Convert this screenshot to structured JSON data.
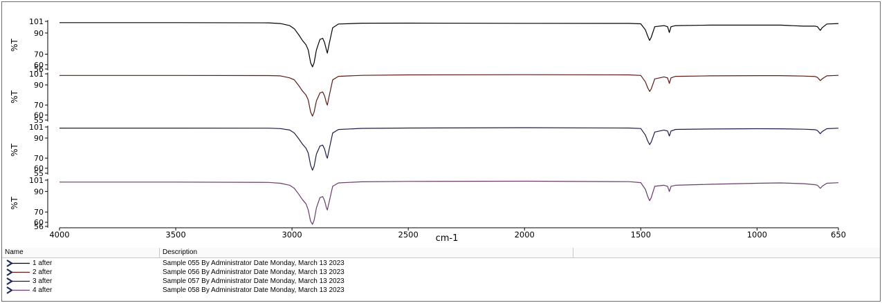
{
  "chart_data": {
    "type": "line",
    "xlabel": "cm-1",
    "ylabel": "%T",
    "xlim": [
      4000,
      650
    ],
    "x_reversed": true,
    "x_ticks": [
      4000,
      3500,
      3000,
      2500,
      2000,
      1500,
      1000,
      650
    ],
    "panels": [
      {
        "name": "1 after",
        "color": "#000000",
        "ylim": [
          56,
          101
        ],
        "y_ticks": [
          101,
          90,
          70,
          60,
          56
        ],
        "points": [
          [
            4000,
            99.8
          ],
          [
            3500,
            99.8
          ],
          [
            3100,
            99.6
          ],
          [
            3050,
            99
          ],
          [
            3010,
            97
          ],
          [
            2990,
            94
          ],
          [
            2970,
            88
          ],
          [
            2955,
            83
          ],
          [
            2940,
            79
          ],
          [
            2930,
            74
          ],
          [
            2920,
            62
          ],
          [
            2912,
            58
          ],
          [
            2905,
            62
          ],
          [
            2895,
            74
          ],
          [
            2880,
            84
          ],
          [
            2868,
            85
          ],
          [
            2860,
            81
          ],
          [
            2852,
            74
          ],
          [
            2848,
            71
          ],
          [
            2840,
            80
          ],
          [
            2825,
            95
          ],
          [
            2800,
            98.5
          ],
          [
            2700,
            99.3
          ],
          [
            2500,
            99.4
          ],
          [
            2000,
            99.2
          ],
          [
            1550,
            99.1
          ],
          [
            1500,
            98.7
          ],
          [
            1480,
            93
          ],
          [
            1470,
            87
          ],
          [
            1462,
            83
          ],
          [
            1455,
            86
          ],
          [
            1440,
            96
          ],
          [
            1400,
            97
          ],
          [
            1385,
            96
          ],
          [
            1377,
            90.5
          ],
          [
            1370,
            96
          ],
          [
            1350,
            97
          ],
          [
            1200,
            97.5
          ],
          [
            1000,
            97.5
          ],
          [
            900,
            97.5
          ],
          [
            800,
            96.5
          ],
          [
            750,
            96.5
          ],
          [
            740,
            96
          ],
          [
            728,
            92.5
          ],
          [
            720,
            95
          ],
          [
            700,
            98.5
          ],
          [
            650,
            99
          ]
        ]
      },
      {
        "name": "2 after",
        "color": "#5a1a12",
        "ylim": [
          55,
          101
        ],
        "y_ticks": [
          101,
          90,
          70,
          60,
          55
        ],
        "points": [
          [
            4000,
            99.4
          ],
          [
            3500,
            99.4
          ],
          [
            3100,
            99.3
          ],
          [
            3050,
            99
          ],
          [
            3010,
            97
          ],
          [
            2990,
            95
          ],
          [
            2970,
            89
          ],
          [
            2955,
            84
          ],
          [
            2940,
            80
          ],
          [
            2930,
            75
          ],
          [
            2920,
            63
          ],
          [
            2912,
            59
          ],
          [
            2905,
            63
          ],
          [
            2895,
            74
          ],
          [
            2880,
            82
          ],
          [
            2868,
            83
          ],
          [
            2860,
            79
          ],
          [
            2852,
            72
          ],
          [
            2848,
            70
          ],
          [
            2840,
            79
          ],
          [
            2825,
            95
          ],
          [
            2800,
            98.5
          ],
          [
            2700,
            99.5
          ],
          [
            2500,
            100
          ],
          [
            2000,
            100.2
          ],
          [
            1550,
            100
          ],
          [
            1500,
            99.4
          ],
          [
            1480,
            93
          ],
          [
            1470,
            87
          ],
          [
            1462,
            83.5
          ],
          [
            1455,
            86
          ],
          [
            1440,
            96
          ],
          [
            1400,
            98
          ],
          [
            1385,
            97
          ],
          [
            1377,
            91.5
          ],
          [
            1370,
            97
          ],
          [
            1350,
            98.5
          ],
          [
            1200,
            99
          ],
          [
            1000,
            99.2
          ],
          [
            900,
            99.2
          ],
          [
            800,
            98.8
          ],
          [
            750,
            98.3
          ],
          [
            740,
            97.5
          ],
          [
            728,
            94.3
          ],
          [
            720,
            96
          ],
          [
            700,
            99
          ],
          [
            650,
            99.5
          ]
        ]
      },
      {
        "name": "3 after",
        "color": "#1a1a4a",
        "ylim": [
          55,
          101
        ],
        "y_ticks": [
          101,
          90,
          70,
          60,
          55
        ],
        "points": [
          [
            4000,
            99.9
          ],
          [
            3500,
            99.9
          ],
          [
            3100,
            99.8
          ],
          [
            3050,
            99.4
          ],
          [
            3010,
            98
          ],
          [
            2990,
            95
          ],
          [
            2970,
            89
          ],
          [
            2955,
            84
          ],
          [
            2940,
            80
          ],
          [
            2930,
            75
          ],
          [
            2920,
            63
          ],
          [
            2912,
            58
          ],
          [
            2905,
            62
          ],
          [
            2895,
            74
          ],
          [
            2880,
            82
          ],
          [
            2868,
            83
          ],
          [
            2860,
            79
          ],
          [
            2852,
            72
          ],
          [
            2848,
            70
          ],
          [
            2840,
            79
          ],
          [
            2825,
            95
          ],
          [
            2800,
            98.5
          ],
          [
            2700,
            99.6
          ],
          [
            2500,
            100
          ],
          [
            2000,
            100.3
          ],
          [
            1550,
            100
          ],
          [
            1500,
            99.5
          ],
          [
            1480,
            93
          ],
          [
            1470,
            87
          ],
          [
            1462,
            83.5
          ],
          [
            1455,
            86
          ],
          [
            1440,
            96
          ],
          [
            1400,
            98
          ],
          [
            1385,
            97
          ],
          [
            1377,
            92
          ],
          [
            1370,
            97
          ],
          [
            1350,
            98.6
          ],
          [
            1200,
            99
          ],
          [
            1000,
            99.3
          ],
          [
            900,
            99.2
          ],
          [
            800,
            98.8
          ],
          [
            750,
            98.3
          ],
          [
            740,
            97.5
          ],
          [
            728,
            94.3
          ],
          [
            720,
            96.5
          ],
          [
            700,
            99.3
          ],
          [
            650,
            99.8
          ]
        ]
      },
      {
        "name": "4 after",
        "color": "#6a3a6a",
        "ylim": [
          56,
          101
        ],
        "y_ticks": [
          101,
          90,
          70,
          60,
          56
        ],
        "points": [
          [
            4000,
            99.1
          ],
          [
            3500,
            99.1
          ],
          [
            3100,
            98.8
          ],
          [
            3050,
            98
          ],
          [
            3010,
            96
          ],
          [
            2990,
            93
          ],
          [
            2970,
            87
          ],
          [
            2955,
            82
          ],
          [
            2940,
            78
          ],
          [
            2930,
            72
          ],
          [
            2920,
            61
          ],
          [
            2912,
            58
          ],
          [
            2905,
            62
          ],
          [
            2895,
            74
          ],
          [
            2880,
            84
          ],
          [
            2868,
            85
          ],
          [
            2860,
            81
          ],
          [
            2852,
            74
          ],
          [
            2848,
            72
          ],
          [
            2840,
            80
          ],
          [
            2825,
            95
          ],
          [
            2800,
            98.3
          ],
          [
            2700,
            99.4
          ],
          [
            2500,
            99.8
          ],
          [
            2000,
            100
          ],
          [
            1550,
            99.5
          ],
          [
            1500,
            98.6
          ],
          [
            1480,
            92
          ],
          [
            1470,
            85
          ],
          [
            1462,
            81
          ],
          [
            1455,
            84
          ],
          [
            1440,
            95
          ],
          [
            1400,
            96
          ],
          [
            1385,
            95
          ],
          [
            1377,
            90
          ],
          [
            1370,
            95
          ],
          [
            1350,
            96
          ],
          [
            1200,
            97
          ],
          [
            1000,
            98
          ],
          [
            900,
            98.3
          ],
          [
            800,
            97.6
          ],
          [
            750,
            96.6
          ],
          [
            740,
            96
          ],
          [
            728,
            93
          ],
          [
            720,
            95
          ],
          [
            700,
            98
          ],
          [
            650,
            98.5
          ]
        ]
      }
    ]
  },
  "legend": {
    "headers": {
      "name": "Name",
      "description": "Description"
    },
    "rows": [
      {
        "name": "1 after",
        "description": "Sample 055 By Administrator Date Monday, March 13 2023",
        "color": "#000000"
      },
      {
        "name": "2 after",
        "description": "Sample 056 By Administrator Date Monday, March 13 2023",
        "color": "#5a1a12"
      },
      {
        "name": "3 after",
        "description": "Sample 057 By Administrator Date Monday, March 13 2023",
        "color": "#1a1a4a"
      },
      {
        "name": "4 after",
        "description": "Sample 058 By Administrator Date Monday, March 13 2023",
        "color": "#6a3a6a"
      }
    ]
  }
}
